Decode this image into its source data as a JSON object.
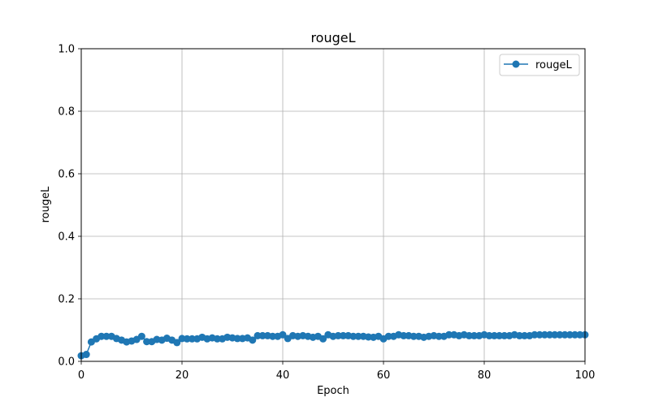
{
  "chart_data": {
    "type": "line",
    "title": "rougeL",
    "xlabel": "Epoch",
    "ylabel": "rougeL",
    "xlim": [
      0,
      100
    ],
    "ylim": [
      0,
      1.0
    ],
    "xticks": [
      0,
      20,
      40,
      60,
      80,
      100
    ],
    "xtick_labels": [
      "0",
      "20",
      "40",
      "60",
      "80",
      "100"
    ],
    "yticks": [
      0.0,
      0.2,
      0.4,
      0.6,
      0.8,
      1.0
    ],
    "ytick_labels": [
      "0.0",
      "0.2",
      "0.4",
      "0.6",
      "0.8",
      "1.0"
    ],
    "grid": true,
    "legend_position": "top-right",
    "series": [
      {
        "name": "rougeL",
        "color": "#1f77b4",
        "marker": "circle",
        "x": [
          0,
          1,
          2,
          3,
          4,
          5,
          6,
          7,
          8,
          9,
          10,
          11,
          12,
          13,
          14,
          15,
          16,
          17,
          18,
          19,
          20,
          21,
          22,
          23,
          24,
          25,
          26,
          27,
          28,
          29,
          30,
          31,
          32,
          33,
          34,
          35,
          36,
          37,
          38,
          39,
          40,
          41,
          42,
          43,
          44,
          45,
          46,
          47,
          48,
          49,
          50,
          51,
          52,
          53,
          54,
          55,
          56,
          57,
          58,
          59,
          60,
          61,
          62,
          63,
          64,
          65,
          66,
          67,
          68,
          69,
          70,
          71,
          72,
          73,
          74,
          75,
          76,
          77,
          78,
          79,
          80,
          81,
          82,
          83,
          84,
          85,
          86,
          87,
          88,
          89,
          90,
          91,
          92,
          93,
          94,
          95,
          96,
          97,
          98,
          99,
          100
        ],
        "values": [
          0.018,
          0.022,
          0.062,
          0.072,
          0.08,
          0.08,
          0.08,
          0.073,
          0.068,
          0.062,
          0.065,
          0.07,
          0.08,
          0.063,
          0.063,
          0.07,
          0.068,
          0.074,
          0.068,
          0.06,
          0.073,
          0.072,
          0.072,
          0.072,
          0.077,
          0.072,
          0.075,
          0.072,
          0.072,
          0.077,
          0.075,
          0.073,
          0.073,
          0.075,
          0.068,
          0.082,
          0.082,
          0.082,
          0.08,
          0.08,
          0.085,
          0.073,
          0.082,
          0.08,
          0.082,
          0.08,
          0.077,
          0.08,
          0.072,
          0.085,
          0.08,
          0.082,
          0.082,
          0.082,
          0.08,
          0.08,
          0.08,
          0.078,
          0.077,
          0.08,
          0.072,
          0.08,
          0.08,
          0.085,
          0.082,
          0.082,
          0.08,
          0.08,
          0.077,
          0.08,
          0.082,
          0.08,
          0.08,
          0.085,
          0.085,
          0.082,
          0.085,
          0.082,
          0.082,
          0.082,
          0.085,
          0.082,
          0.082,
          0.082,
          0.082,
          0.082,
          0.085,
          0.082,
          0.082,
          0.082,
          0.085,
          0.085,
          0.085,
          0.085,
          0.085,
          0.085,
          0.085,
          0.085,
          0.085,
          0.085,
          0.085
        ]
      }
    ]
  }
}
